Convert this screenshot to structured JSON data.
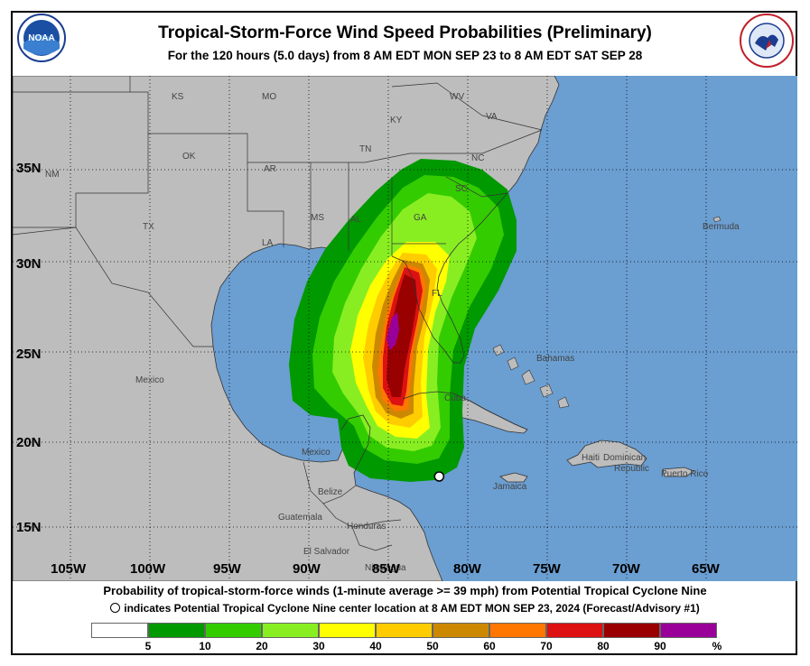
{
  "header": {
    "title": "Tropical-Storm-Force Wind Speed Probabilities (Preliminary)",
    "subtitle": "For the 120 hours (5.0 days) from 8 AM EDT MON SEP 23 to 8 AM EDT SAT SEP 28",
    "noaa_logo_text": "NOAA",
    "nws_logo_text": "NATIONAL WEATHER SERVICE"
  },
  "axes": {
    "lat_labels": [
      "35N",
      "30N",
      "25N",
      "20N",
      "15N"
    ],
    "lon_labels": [
      "105W",
      "100W",
      "95W",
      "90W",
      "85W",
      "80W",
      "75W",
      "70W",
      "65W"
    ]
  },
  "places": [
    {
      "name": "KS"
    },
    {
      "name": "MO"
    },
    {
      "name": "KY"
    },
    {
      "name": "WV"
    },
    {
      "name": "VA"
    },
    {
      "name": "OK"
    },
    {
      "name": "AR"
    },
    {
      "name": "TN"
    },
    {
      "name": "NC"
    },
    {
      "name": "NM"
    },
    {
      "name": "TX"
    },
    {
      "name": "MS"
    },
    {
      "name": "AL"
    },
    {
      "name": "GA"
    },
    {
      "name": "SC"
    },
    {
      "name": "LA"
    },
    {
      "name": "FL"
    },
    {
      "name": "Bermuda"
    },
    {
      "name": "Bahamas"
    },
    {
      "name": "Mexico"
    },
    {
      "name": "Cuba"
    },
    {
      "name": "Mexico"
    },
    {
      "name": "Haiti"
    },
    {
      "name": "Dominican"
    },
    {
      "name": "Republic"
    },
    {
      "name": "Puerto Rico"
    },
    {
      "name": "Jamaica"
    },
    {
      "name": "Belize"
    },
    {
      "name": "Guatemala"
    },
    {
      "name": "Honduras"
    },
    {
      "name": "El Salvador"
    },
    {
      "name": "Nicaragua"
    }
  ],
  "footer": {
    "line1": "Probability of tropical-storm-force winds (1-minute average >= 39 mph) from Potential Tropical Cyclone Nine",
    "line2": "indicates Potential Tropical Cyclone Nine center location at 8 AM EDT MON SEP 23, 2024 (Forecast/Advisory #1)"
  },
  "legend": {
    "colors": [
      "#ffffff",
      "#009900",
      "#33cc00",
      "#88ee22",
      "#ffff00",
      "#ffcc00",
      "#cc8800",
      "#ff7700",
      "#dd1111",
      "#990000",
      "#990099"
    ],
    "labels": [
      "5",
      "10",
      "20",
      "30",
      "40",
      "50",
      "60",
      "70",
      "80",
      "90",
      "%"
    ]
  },
  "colors": {
    "ocean": "#6b9ed1",
    "land": "#bdbdbd",
    "center_marker": "#ffffff"
  },
  "center": {
    "lat": 18.0,
    "lon": -81.8
  }
}
